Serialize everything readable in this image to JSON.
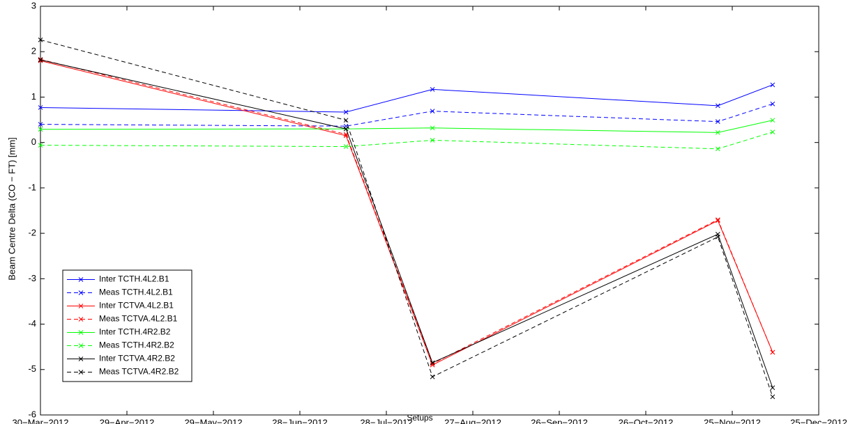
{
  "chart_data": {
    "type": "line",
    "x_label": "Setups",
    "y_label": "Beam Centre Delta (CO − FT) [mm]",
    "x": [
      "2012-03-30",
      "2012-07-14",
      "2012-08-13",
      "2012-11-20",
      "2012-12-09"
    ],
    "xlim": [
      "2012-03-30",
      "2012-12-25"
    ],
    "xticks": [
      {
        "value": "2012-03-30",
        "label": "30−Mar−2012"
      },
      {
        "value": "2012-04-29",
        "label": "29−Apr−2012"
      },
      {
        "value": "2012-05-29",
        "label": "29−May−2012"
      },
      {
        "value": "2012-06-28",
        "label": "28−Jun−2012"
      },
      {
        "value": "2012-07-28",
        "label": "28−Jul−2012"
      },
      {
        "value": "2012-08-27",
        "label": "27−Aug−2012"
      },
      {
        "value": "2012-09-26",
        "label": "26−Sep−2012"
      },
      {
        "value": "2012-10-26",
        "label": "26−Oct−2012"
      },
      {
        "value": "2012-11-25",
        "label": "25−Nov−2012"
      },
      {
        "value": "2012-12-25",
        "label": "25−Dec−2012"
      }
    ],
    "ylim": [
      -6,
      3
    ],
    "yticks": [
      -6,
      -5,
      -4,
      -3,
      -2,
      -1,
      0,
      1,
      2,
      3
    ],
    "legend": "lower left",
    "marker": "x",
    "series": [
      {
        "name": "Inter TCTH.4L2.B1",
        "color": "#0000ff",
        "linestyle": "solid",
        "values": [
          0.77,
          0.67,
          1.17,
          0.81,
          1.27
        ]
      },
      {
        "name": "Meas TCTH.4L2.B1",
        "color": "#0000ff",
        "linestyle": "dashed",
        "values": [
          0.4,
          0.36,
          0.69,
          0.46,
          0.85
        ]
      },
      {
        "name": "Inter TCTVA.4L2.B1",
        "color": "#ff0000",
        "linestyle": "solid",
        "values": [
          1.8,
          0.15,
          -4.9,
          -1.72,
          -4.62
        ]
      },
      {
        "name": "Meas TCTVA.4L2.B1",
        "color": "#ff0000",
        "linestyle": "dashed",
        "values": [
          1.83,
          0.18,
          -4.87,
          -1.7,
          -4.62
        ]
      },
      {
        "name": "Inter TCTH.4R2.B2",
        "color": "#00ff00",
        "linestyle": "solid",
        "values": [
          0.29,
          0.3,
          0.32,
          0.22,
          0.49
        ]
      },
      {
        "name": "Meas TCTH.4R2.B2",
        "color": "#00ff00",
        "linestyle": "dashed",
        "values": [
          -0.06,
          -0.09,
          0.05,
          -0.14,
          0.23
        ]
      },
      {
        "name": "Inter TCTVA.4R2.B2",
        "color": "#000000",
        "linestyle": "solid",
        "values": [
          1.82,
          0.3,
          -4.85,
          -2.02,
          -5.4
        ]
      },
      {
        "name": "Meas TCTVA.4R2.B2",
        "color": "#000000",
        "linestyle": "dashed",
        "values": [
          2.26,
          0.49,
          -5.16,
          -2.08,
          -5.6
        ]
      }
    ]
  }
}
